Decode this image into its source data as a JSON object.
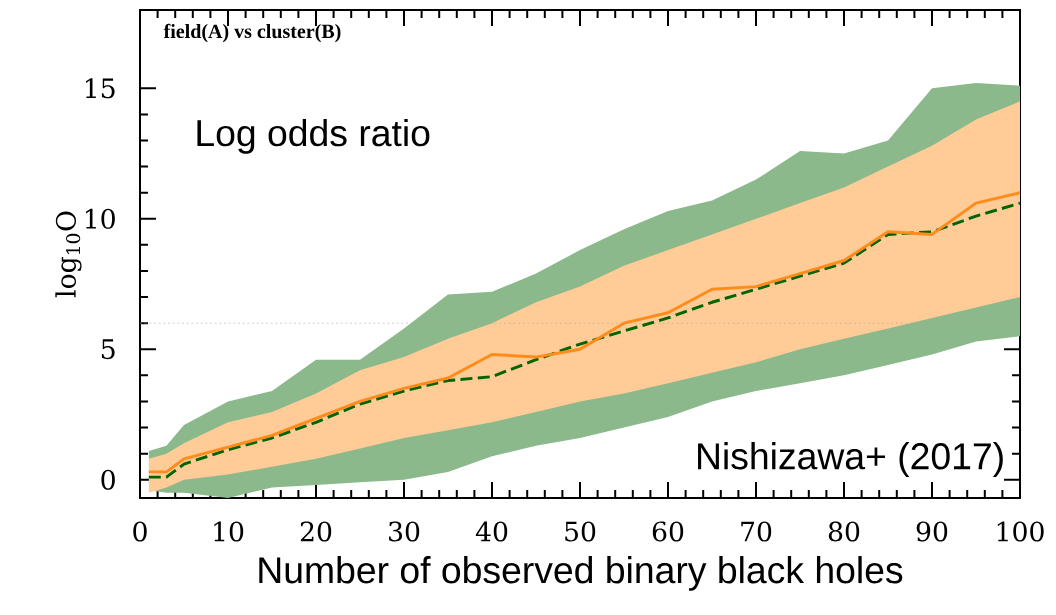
{
  "chart_data": {
    "type": "line",
    "xlabel": "Number of observed binary black holes",
    "ylabel": "log$_{10}$O",
    "annotations": [
      "field(A) vs cluster(B)",
      "Log odds ratio",
      "Nishizawa+ (2017)"
    ],
    "x": [
      1,
      3,
      5,
      10,
      15,
      20,
      25,
      30,
      35,
      40,
      45,
      50,
      55,
      60,
      65,
      70,
      75,
      80,
      85,
      90,
      95,
      100
    ],
    "series": [
      {
        "color": "#006400",
        "line_style": "dashed",
        "values": [
          0.1,
          0.1,
          0.6,
          1.15,
          1.6,
          2.2,
          2.9,
          3.4,
          3.8,
          3.95,
          4.6,
          5.2,
          5.7,
          6.2,
          6.8,
          7.3,
          7.8,
          8.3,
          9.4,
          9.5,
          10.1,
          10.6
        ],
        "lower": [
          -0.4,
          -0.5,
          -0.5,
          -0.7,
          -0.3,
          -0.2,
          -0.1,
          0.0,
          0.3,
          0.9,
          1.3,
          1.6,
          2.0,
          2.4,
          3.0,
          3.4,
          3.7,
          4.0,
          4.4,
          4.8,
          5.3,
          5.5
        ],
        "upper": [
          1.1,
          1.3,
          2.1,
          3.0,
          3.4,
          4.6,
          4.6,
          5.8,
          7.1,
          7.2,
          7.9,
          8.8,
          9.6,
          10.3,
          10.7,
          11.5,
          12.6,
          12.5,
          13.0,
          15.0,
          15.2,
          15.1
        ]
      },
      {
        "color": "#ff8c1a",
        "line_style": "solid",
        "values": [
          0.3,
          0.3,
          0.8,
          1.25,
          1.7,
          2.35,
          3.0,
          3.5,
          3.9,
          4.8,
          4.7,
          5.0,
          6.0,
          6.4,
          7.3,
          7.4,
          7.9,
          8.4,
          9.5,
          9.4,
          10.6,
          11.0
        ],
        "lower": [
          -0.5,
          -0.3,
          0.0,
          0.2,
          0.5,
          0.8,
          1.2,
          1.6,
          1.9,
          2.2,
          2.6,
          3.0,
          3.3,
          3.7,
          4.1,
          4.5,
          5.0,
          5.4,
          5.8,
          6.2,
          6.6,
          7.0
        ],
        "upper": [
          0.8,
          1.0,
          1.4,
          2.2,
          2.6,
          3.3,
          4.2,
          4.7,
          5.4,
          6.0,
          6.8,
          7.4,
          8.2,
          8.8,
          9.4,
          10.0,
          10.6,
          11.2,
          12.0,
          12.8,
          13.8,
          14.5
        ]
      }
    ],
    "ref_lines": [
      {
        "axis": "y",
        "value": 6,
        "color": "#aaaaaa",
        "line_style": "dotted"
      }
    ],
    "xlim": [
      0,
      100
    ],
    "xticks": [
      0,
      10,
      20,
      30,
      40,
      50,
      60,
      70,
      80,
      90,
      100
    ],
    "ylim": [
      -0.7,
      18
    ],
    "yticks": [
      0,
      5,
      10,
      15
    ]
  }
}
